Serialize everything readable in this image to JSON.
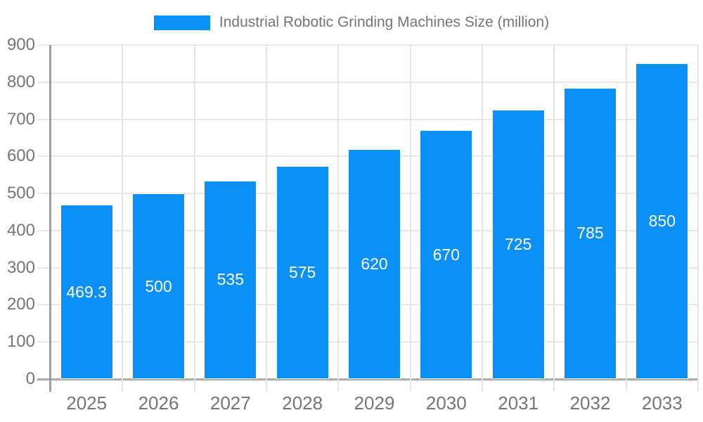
{
  "legend": {
    "label": "Industrial Robotic Grinding Machines Size (million)"
  },
  "chart_data": {
    "type": "bar",
    "title": "Industrial Robotic Grinding Machines Size (million)",
    "categories": [
      "2025",
      "2026",
      "2027",
      "2028",
      "2029",
      "2030",
      "2031",
      "2032",
      "2033"
    ],
    "series": [
      {
        "name": "Industrial Robotic Grinding Machines Size (million)",
        "values": [
          469.3,
          500,
          535,
          575,
          620,
          670,
          725,
          785,
          850
        ]
      }
    ],
    "data_labels": [
      "469.3",
      "500",
      "535",
      "575",
      "620",
      "670",
      "725",
      "785",
      "850"
    ],
    "xlabel": "",
    "ylabel": "",
    "ylim": [
      0,
      900
    ],
    "yticks": [
      0,
      100,
      200,
      300,
      400,
      500,
      600,
      700,
      800,
      900
    ],
    "grid": true,
    "legend_position": "top",
    "colors": {
      "bar": "#0A90F6",
      "bar_border": "#FFFFFF",
      "bar_label": "#FFFFFF",
      "axis_text": "#757575",
      "legend_text": "#757575",
      "gridline": "#E7E7E7",
      "baseline": "#ABABAB",
      "y_axis_line": "#9E9E9E",
      "category_line": "#E3E3E3",
      "background": "#FFFFFF"
    }
  }
}
